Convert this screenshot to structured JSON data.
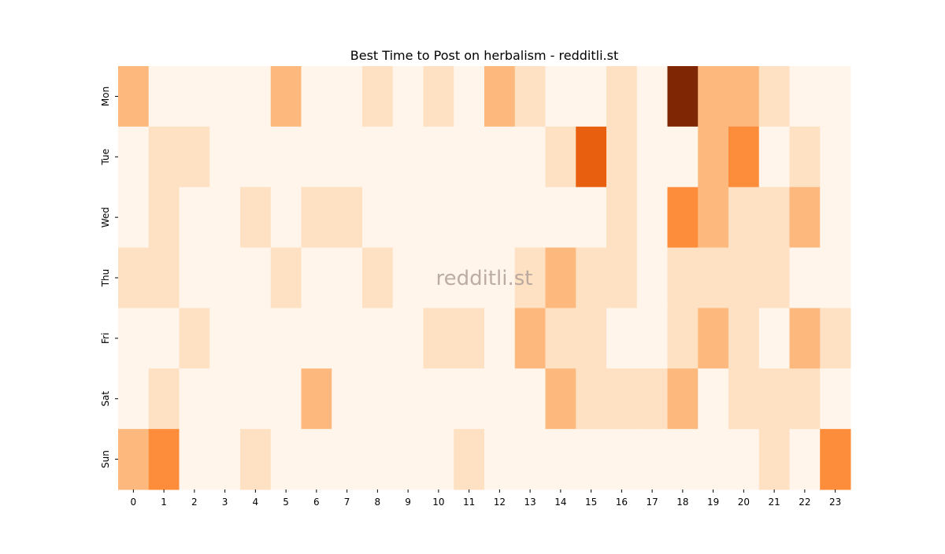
{
  "chart_data": {
    "type": "heatmap",
    "title": "Best Time to Post on herbalism - redditli.st",
    "watermark": "redditli.st",
    "x": [
      0,
      1,
      2,
      3,
      4,
      5,
      6,
      7,
      8,
      9,
      10,
      11,
      12,
      13,
      14,
      15,
      16,
      17,
      18,
      19,
      20,
      21,
      22,
      23
    ],
    "y": [
      "Mon",
      "Tue",
      "Wed",
      "Thu",
      "Fri",
      "Sat",
      "Sun"
    ],
    "values": [
      [
        2,
        0,
        0,
        0,
        0,
        2,
        0,
        0,
        1,
        0,
        1,
        0,
        2,
        1,
        0,
        0,
        1,
        0,
        6,
        2,
        2,
        1,
        0,
        0
      ],
      [
        0,
        1,
        1,
        0,
        0,
        0,
        0,
        0,
        0,
        0,
        0,
        0,
        0,
        0,
        1,
        4,
        1,
        0,
        0,
        2,
        3,
        0,
        1,
        0
      ],
      [
        0,
        1,
        0,
        0,
        1,
        0,
        1,
        1,
        0,
        0,
        0,
        0,
        0,
        0,
        0,
        0,
        1,
        0,
        3,
        2,
        1,
        1,
        2,
        0
      ],
      [
        1,
        1,
        0,
        0,
        0,
        1,
        0,
        0,
        1,
        0,
        0,
        0,
        0,
        1,
        2,
        1,
        1,
        0,
        1,
        1,
        1,
        1,
        0,
        0
      ],
      [
        0,
        0,
        1,
        0,
        0,
        0,
        0,
        0,
        0,
        0,
        1,
        1,
        0,
        2,
        1,
        1,
        0,
        0,
        1,
        2,
        1,
        0,
        2,
        1
      ],
      [
        0,
        1,
        0,
        0,
        0,
        0,
        2,
        0,
        0,
        0,
        0,
        0,
        0,
        0,
        2,
        1,
        1,
        1,
        2,
        0,
        1,
        1,
        1,
        0
      ],
      [
        2,
        3,
        0,
        0,
        1,
        0,
        0,
        0,
        0,
        0,
        0,
        1,
        0,
        0,
        0,
        0,
        0,
        0,
        0,
        0,
        0,
        1,
        0,
        3
      ]
    ],
    "zlim": [
      0,
      6
    ],
    "colorscale": [
      "#fff5eb",
      "#fee0c3",
      "#fdb97d",
      "#fd8c3b",
      "#e8600f",
      "#b33d03",
      "#7f2704"
    ]
  }
}
